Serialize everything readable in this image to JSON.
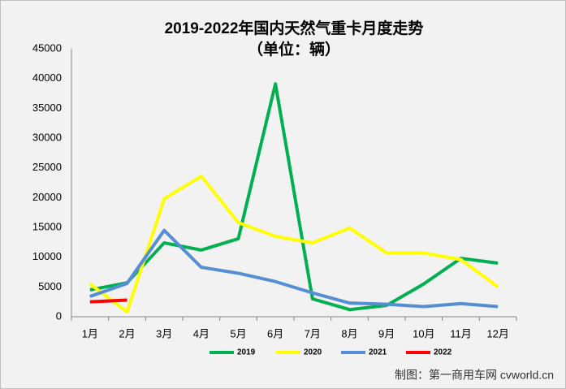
{
  "chart_data": {
    "type": "line",
    "title": "2019-2022年国内天然气重卡月度走势",
    "subtitle": "（单位：辆）",
    "categories": [
      "1月",
      "2月",
      "3月",
      "4月",
      "5月",
      "6月",
      "7月",
      "8月",
      "9月",
      "10月",
      "11月",
      "12月"
    ],
    "series": [
      {
        "name": "2019",
        "color": "#00b050",
        "values": [
          4500,
          5700,
          12400,
          11200,
          13100,
          39100,
          3000,
          1200,
          1900,
          5500,
          9800,
          9000
        ]
      },
      {
        "name": "2020",
        "color": "#ffff00",
        "values": [
          5500,
          800,
          19800,
          23600,
          15800,
          13500,
          12400,
          14900,
          10700,
          10700,
          9600,
          5000
        ]
      },
      {
        "name": "2021",
        "color": "#558ed5",
        "values": [
          3400,
          5600,
          14500,
          8300,
          7300,
          5900,
          4000,
          2300,
          2100,
          1700,
          2200,
          1700
        ]
      },
      {
        "name": "2022",
        "color": "#ff0000",
        "values": [
          2500,
          2800,
          null,
          null,
          null,
          null,
          null,
          null,
          null,
          null,
          null,
          null
        ]
      }
    ],
    "ylim": [
      0,
      45000
    ],
    "yticks": [
      0,
      5000,
      10000,
      15000,
      20000,
      25000,
      30000,
      35000,
      40000,
      45000
    ],
    "grid": false,
    "legend": "bottom",
    "source": "制图：第一商用车网 cvworld.cn"
  }
}
